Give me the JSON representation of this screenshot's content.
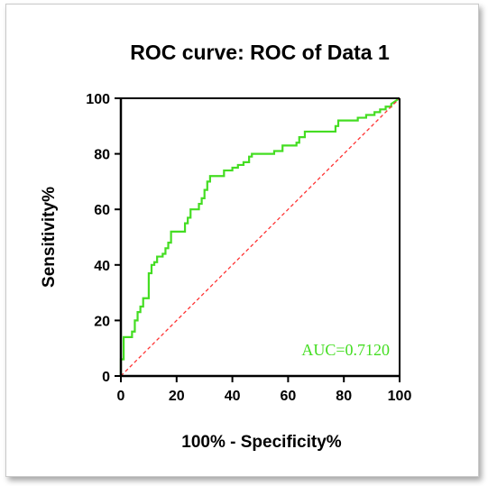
{
  "chart_data": {
    "type": "line",
    "title": "ROC curve: ROC of Data 1",
    "xlabel": "100% - Specificity%",
    "ylabel": "Sensitivity%",
    "xlim": [
      0,
      100
    ],
    "ylim": [
      0,
      100
    ],
    "xticks": [
      0,
      20,
      40,
      60,
      80,
      100
    ],
    "yticks": [
      0,
      20,
      40,
      60,
      80,
      100
    ],
    "xtick_labels": [
      "0",
      "20",
      "40",
      "60",
      "80",
      "100"
    ],
    "ytick_labels": [
      "0",
      "20",
      "40",
      "60",
      "80",
      "100"
    ],
    "grid": false,
    "series": [
      {
        "color": "#44dd22",
        "x": [
          0,
          0,
          1,
          1,
          4,
          4,
          5,
          5,
          6,
          6,
          7,
          7,
          8,
          8,
          10,
          10,
          11,
          11,
          12,
          12,
          13,
          13,
          15,
          15,
          16,
          16,
          17,
          17,
          18,
          18,
          21,
          21,
          23,
          23,
          24,
          24,
          25,
          25,
          26,
          26,
          28,
          28,
          29,
          29,
          30,
          30,
          31,
          31,
          32,
          32,
          37,
          37,
          40,
          40,
          42,
          42,
          44,
          44,
          46,
          46,
          47,
          47,
          55,
          55,
          58,
          58,
          63,
          63,
          64,
          64,
          66,
          66,
          77,
          77,
          78,
          78,
          85,
          85,
          88,
          88,
          91,
          91,
          93,
          93,
          95,
          95,
          97,
          97,
          100
        ],
        "y": [
          0,
          6,
          6,
          14,
          14,
          16,
          16,
          20,
          20,
          23,
          23,
          25,
          25,
          28,
          28,
          37,
          37,
          40,
          40,
          41,
          41,
          43,
          43,
          44,
          44,
          46,
          46,
          48,
          48,
          52,
          52,
          52,
          52,
          55,
          55,
          57,
          57,
          60,
          60,
          60,
          60,
          62,
          62,
          64,
          64,
          67,
          67,
          70,
          70,
          72,
          72,
          74,
          74,
          75,
          75,
          76,
          76,
          77,
          77,
          79,
          79,
          80,
          80,
          81,
          81,
          83,
          83,
          84,
          84,
          86,
          86,
          88,
          88,
          90,
          90,
          92,
          92,
          93,
          93,
          94,
          94,
          95,
          95,
          96,
          96,
          97,
          97,
          98,
          100
        ]
      },
      {
        "style": "dashed",
        "color": "#ff3333",
        "x": [
          0,
          100
        ],
        "y": [
          0,
          100
        ]
      }
    ],
    "annotations": [
      {
        "text": "AUC=0.7120",
        "color": "#44dd22",
        "position": "bottom-right"
      }
    ]
  }
}
